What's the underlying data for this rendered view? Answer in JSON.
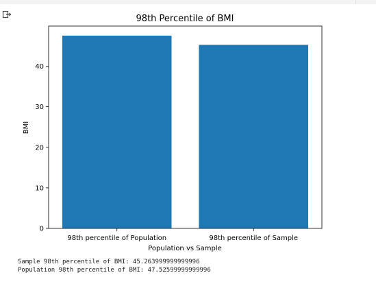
{
  "output_area": {
    "output_icon": "output-arrow-icon"
  },
  "chart_data": {
    "type": "bar",
    "title": "98th Percentile of BMI",
    "xlabel": "Population vs Sample",
    "ylabel": "BMI",
    "categories": [
      "98th percentile of Population",
      "98th percentile of Sample"
    ],
    "values": [
      47.52599999999996,
      45.263999999999996
    ],
    "ylim": [
      0,
      49.9
    ],
    "yticks": [
      "0",
      "10",
      "20",
      "30",
      "40"
    ],
    "bar_color": "#1f77b4",
    "grid": false
  },
  "stdout": [
    "Sample 98th percentile of BMI: 45.263999999999996",
    "Population 98th percentile of BMI: 47.52599999999996"
  ]
}
